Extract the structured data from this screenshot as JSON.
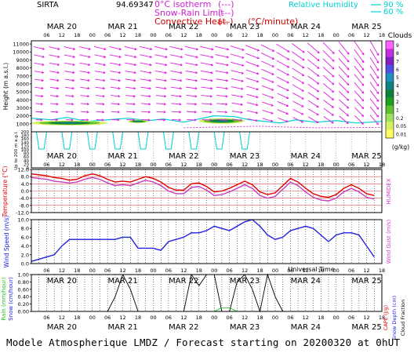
{
  "header": {
    "station": "SIRTA",
    "code": "94.69347",
    "legend_left": [
      {
        "label": "0°C isotherm",
        "swatch": "(---)",
        "color": "#d020d0"
      },
      {
        "label": "Snow-Rain Limit",
        "swatch": "(---)",
        "color": "#d020d0"
      },
      {
        "label": "Convective Heat.",
        "swatch": "(—)",
        "unit": "(°C/minute)",
        "color": "#d00000"
      }
    ],
    "legend_right": [
      {
        "label": "Relative Humidity",
        "value": "90 %",
        "color": "#00d0d0"
      },
      {
        "label": "",
        "value": "60 %",
        "color": "#00d0d0"
      }
    ]
  },
  "time_axis": {
    "hour_ticks": [
      "06",
      "12",
      "18",
      "00"
    ],
    "days": [
      "MAR 20",
      "MAR 21",
      "MAR 22",
      "MAR 23",
      "MAR 24",
      "MAR 25"
    ],
    "xlabel": "Universal Time"
  },
  "footer": "Modele Atmospherique LMDZ / Forecast starting on 20200320 at 0hUT",
  "chart_data": [
    {
      "type": "heatmap",
      "panel": "clouds",
      "ylabel": "Height (m a.s.l.)",
      "ylabel2": "Up to 200 m a.g.l.",
      "yticks_upper": [
        1000,
        2000,
        3000,
        4000,
        5000,
        6000,
        7000,
        8000,
        9000,
        10000,
        11000
      ],
      "yticks_lower": [
        0,
        20,
        40,
        60,
        80,
        100,
        120,
        140,
        160,
        180,
        200
      ],
      "colorbar": {
        "title": "Clouds",
        "unit": "(g/kg)",
        "ticks": [
          "9",
          "8",
          "7",
          "6",
          "5",
          "4",
          "3",
          "2",
          "1",
          "0.2",
          "0.05",
          "0.01"
        ],
        "colors": [
          "#ff60ff",
          "#c030e0",
          "#8020c0",
          "#5050e0",
          "#2090c0",
          "#108080",
          "#108040",
          "#20a020",
          "#60c030",
          "#a0e060",
          "#d8f060",
          "#ffff60"
        ]
      },
      "cloud_layers": [
        {
          "time_h": [
            0,
            30
          ],
          "height_m": [
            800,
            1400
          ]
        },
        {
          "time_h": [
            38,
            46
          ],
          "height_m": [
            1100,
            1500
          ]
        },
        {
          "time_h": [
            66,
            84
          ],
          "height_m": [
            1000,
            1700
          ]
        }
      ]
    },
    {
      "type": "line",
      "panel": "temperature",
      "ylabel": "Temperature (°C)",
      "ylabel2": "HUMIDEX",
      "yticks": [
        -12.0,
        -8.0,
        -4.0,
        0.0,
        4.0,
        8.0,
        12.0
      ],
      "ylim": [
        -12,
        12
      ],
      "series": [
        {
          "name": "",
          "color": "#e00000",
          "values": [
            9.5,
            9.0,
            8.5,
            7.5,
            7.0,
            6.0,
            6.5,
            8.5,
            9.5,
            8.5,
            6.5,
            5.0,
            5.5,
            5.0,
            6.5,
            8.0,
            7.0,
            5.0,
            2.0,
            0.5,
            0.5,
            4.0,
            4.5,
            2.5,
            -0.5,
            0.0,
            1.5,
            3.5,
            5.5,
            3.5,
            -0.5,
            -2.0,
            -1.0,
            3.0,
            7.0,
            5.0,
            1.5,
            -1.5,
            -3.0,
            -3.5,
            -2.0,
            1.5,
            3.5,
            1.5,
            -1.5,
            -2.5
          ]
        },
        {
          "name": "",
          "color": "#c040c0",
          "values": [
            7.5,
            7.0,
            6.5,
            5.5,
            5.0,
            4.5,
            5.0,
            6.5,
            7.5,
            6.5,
            4.5,
            3.0,
            3.5,
            3.0,
            4.5,
            6.0,
            5.0,
            3.0,
            0.0,
            -1.5,
            -1.5,
            2.0,
            2.5,
            0.5,
            -2.5,
            -2.0,
            -0.5,
            1.5,
            3.5,
            1.5,
            -2.5,
            -4.0,
            -3.0,
            1.0,
            5.0,
            3.0,
            -0.5,
            -3.5,
            -5.0,
            -5.5,
            -4.0,
            -0.5,
            1.5,
            -0.5,
            -3.5,
            -4.5
          ]
        }
      ]
    },
    {
      "type": "line",
      "panel": "wind",
      "ylabel": "Wind Speed (m/s)",
      "ylabel2": "Wind Gust (m/s)",
      "yticks": [
        0.0,
        2.0,
        4.0,
        6.0,
        8.0,
        10.0
      ],
      "ylim": [
        0,
        10
      ],
      "series": [
        {
          "name": "",
          "color": "#2020e0",
          "values": [
            0.5,
            1.0,
            1.5,
            2.0,
            4.0,
            5.5,
            5.5,
            5.5,
            5.5,
            5.5,
            5.5,
            5.5,
            6.0,
            6.0,
            3.5,
            3.5,
            3.5,
            3.0,
            5.0,
            5.5,
            6.0,
            7.0,
            7.0,
            7.5,
            8.5,
            8.0,
            7.5,
            8.5,
            9.5,
            10.0,
            8.5,
            6.5,
            5.5,
            6.0,
            7.5,
            8.0,
            8.5,
            8.0,
            6.5,
            5.0,
            6.5,
            7.0,
            7.0,
            6.5,
            4.0,
            1.5
          ]
        }
      ]
    },
    {
      "type": "line",
      "panel": "precipitation",
      "ylabel": "Rain (mm/hour)",
      "ylabel_snow": "Snow (cm/hour)",
      "ylabel2": "CAPE (J/g)",
      "ylabel2_snow": "Snow Depth (cm)",
      "ylabel2_cloud": "Cloud Fraction",
      "yticks": [
        0.0,
        0.2,
        0.4,
        0.6,
        0.8,
        1.0
      ],
      "ylim": [
        0,
        1
      ],
      "series": [
        {
          "name": "",
          "color": "#000000",
          "values": [
            0,
            0,
            0,
            0,
            0,
            0,
            0,
            0,
            0,
            0,
            0,
            0.4,
            1.0,
            0.6,
            0,
            0,
            0,
            0,
            0,
            0,
            0,
            1.0,
            0.7,
            1.0,
            1.0,
            0,
            0,
            0.8,
            1.0,
            0.6,
            0,
            1.0,
            0.4,
            0,
            0,
            0,
            0,
            0,
            0,
            0,
            0,
            0,
            0,
            0,
            0,
            0
          ]
        },
        {
          "name": "",
          "color": "#20c020",
          "values": [
            0,
            0,
            0,
            0,
            0,
            0,
            0,
            0,
            0,
            0,
            0,
            0,
            0,
            0,
            0,
            0,
            0,
            0,
            0,
            0,
            0,
            0,
            0,
            0,
            0,
            0.1,
            0.1,
            0,
            0,
            0,
            0,
            0,
            0,
            0,
            0,
            0,
            0,
            0,
            0,
            0,
            0,
            0,
            0,
            0,
            0,
            0
          ]
        }
      ]
    }
  ]
}
